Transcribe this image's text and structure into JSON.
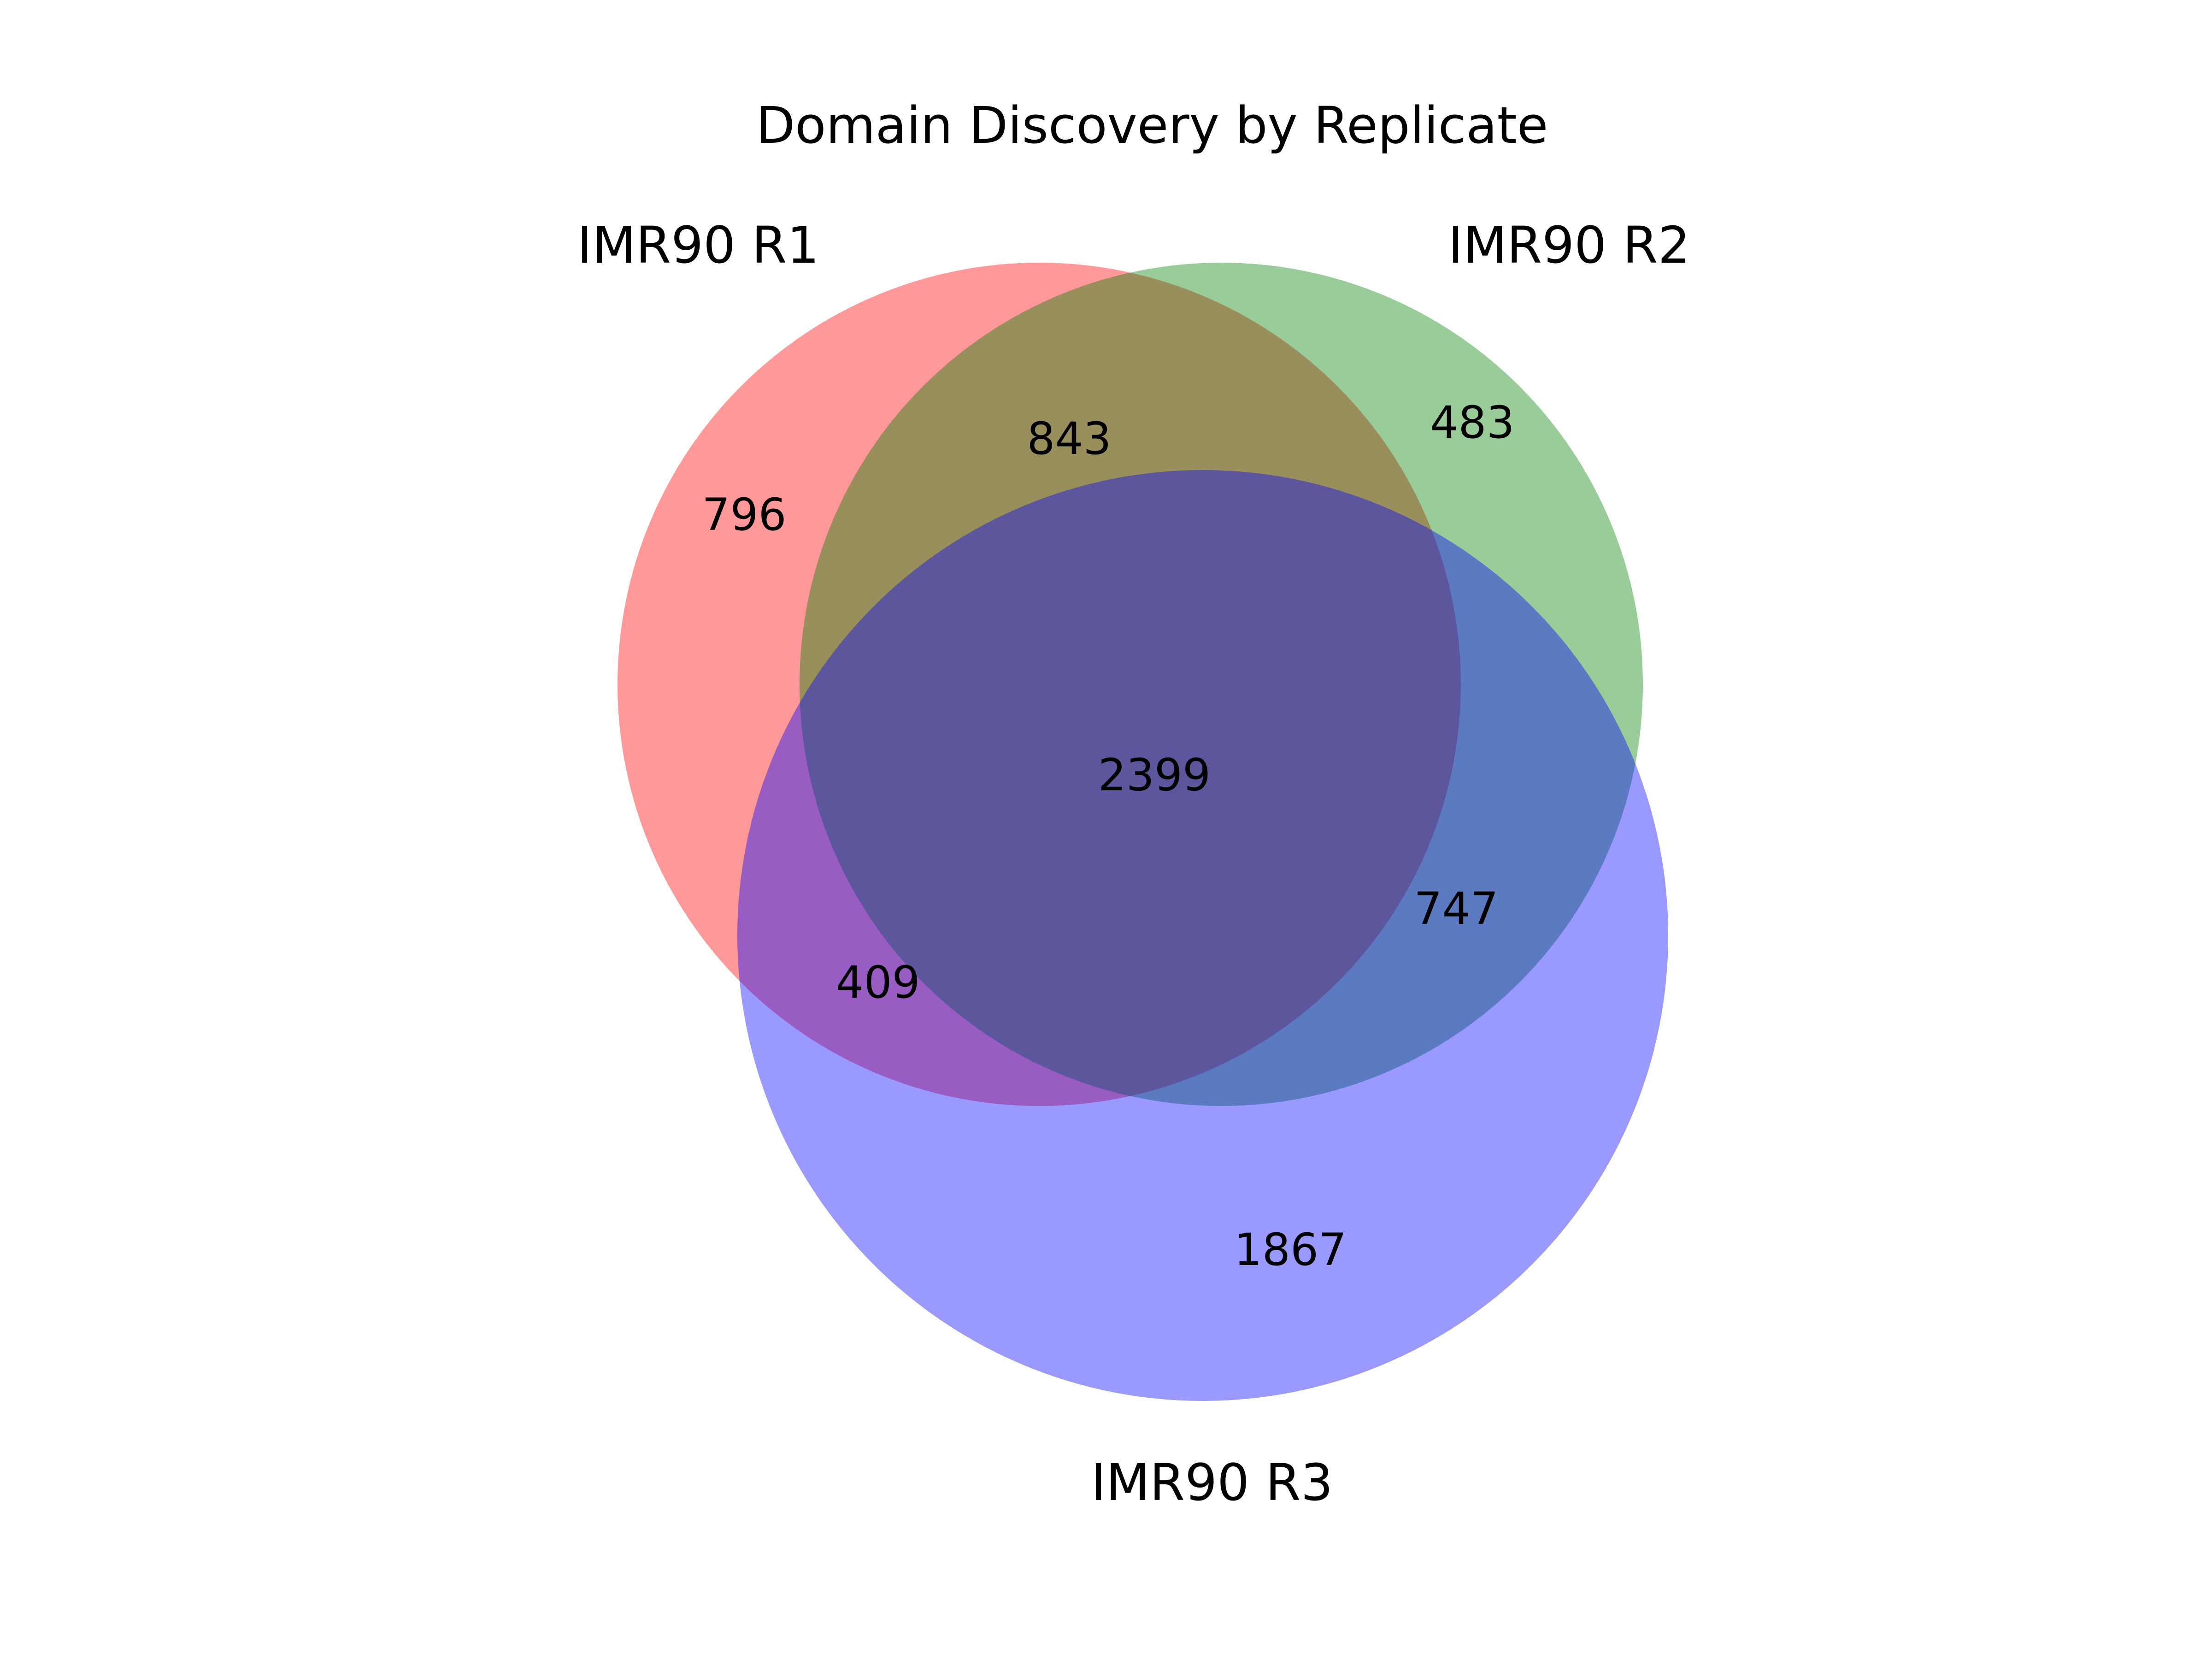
{
  "chart_data": {
    "type": "venn",
    "title": "Domain Discovery by Replicate",
    "sets": [
      {
        "name": "IMR90 R1",
        "color": "#ff0000"
      },
      {
        "name": "IMR90 R2",
        "color": "#008000"
      },
      {
        "name": "IMR90 R3",
        "color": "#0000ff"
      }
    ],
    "regions": [
      {
        "sets": [
          "IMR90 R1"
        ],
        "value": 796
      },
      {
        "sets": [
          "IMR90 R2"
        ],
        "value": 483
      },
      {
        "sets": [
          "IMR90 R3"
        ],
        "value": 1867
      },
      {
        "sets": [
          "IMR90 R1",
          "IMR90 R2"
        ],
        "value": 843
      },
      {
        "sets": [
          "IMR90 R1",
          "IMR90 R3"
        ],
        "value": 409
      },
      {
        "sets": [
          "IMR90 R2",
          "IMR90 R3"
        ],
        "value": 747
      },
      {
        "sets": [
          "IMR90 R1",
          "IMR90 R2",
          "IMR90 R3"
        ],
        "value": 2399
      }
    ],
    "fill_opacity": 0.4
  }
}
